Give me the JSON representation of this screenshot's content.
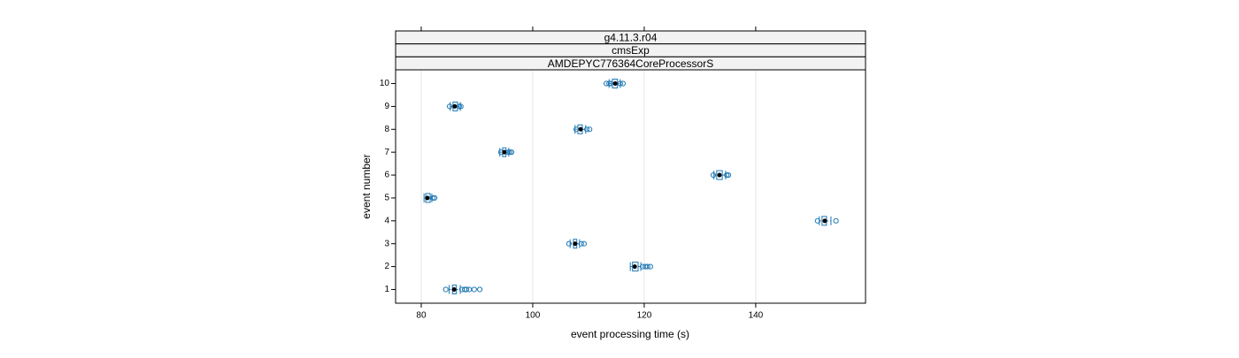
{
  "chart_data": {
    "type": "boxplot",
    "strips": [
      "g4.11.3.r04",
      "cmsExp",
      "AMDEPYC776364CoreProcessorS"
    ],
    "xlabel": "event processing time (s)",
    "ylabel": "event number",
    "xlim": [
      75.4,
      159.7
    ],
    "xticks": [
      80,
      100,
      120,
      140
    ],
    "ylim": [
      0.4,
      10.6
    ],
    "yticks": [
      1,
      2,
      3,
      4,
      5,
      6,
      7,
      8,
      9,
      10
    ],
    "color": "#1f78b4",
    "median_color": "#000000",
    "grid": true,
    "boxes": [
      {
        "y": 1,
        "min": 85,
        "q1": 85.6,
        "median": 85.9,
        "q3": 86.3,
        "max": 87,
        "outliers": [
          84.4,
          87.3,
          87.8,
          88.1,
          88.6,
          89.5,
          90.5
        ]
      },
      {
        "y": 2,
        "min": 117.5,
        "q1": 117.9,
        "median": 118.3,
        "q3": 118.9,
        "max": 119.4,
        "outliers": [
          119.7,
          120.2,
          120.6,
          121.1
        ]
      },
      {
        "y": 3,
        "min": 106.7,
        "q1": 107.3,
        "median": 107.6,
        "q3": 107.9,
        "max": 108.4,
        "outliers": [
          106.5,
          108.7,
          109.2
        ]
      },
      {
        "y": 4,
        "min": 151.4,
        "q1": 151.9,
        "median": 152.4,
        "q3": 152.7,
        "max": 153.5,
        "outliers": [
          151.1,
          154.4
        ]
      },
      {
        "y": 5,
        "min": 80.5,
        "q1": 80.8,
        "median": 81.1,
        "q3": 81.6,
        "max": 81.9,
        "outliers": [
          82.1,
          82.4
        ]
      },
      {
        "y": 6,
        "min": 132.5,
        "q1": 133,
        "median": 133.5,
        "q3": 134,
        "max": 134.6,
        "outliers": [
          132.4,
          134.8,
          135.1
        ]
      },
      {
        "y": 7,
        "min": 94.1,
        "q1": 94.6,
        "median": 94.9,
        "q3": 95.2,
        "max": 95.7,
        "outliers": [
          94.3,
          95.6,
          95.9,
          96.2
        ]
      },
      {
        "y": 8,
        "min": 107.6,
        "q1": 108.1,
        "median": 108.6,
        "q3": 108.9,
        "max": 109.5,
        "outliers": [
          107.8,
          109.7,
          110.2
        ]
      },
      {
        "y": 9,
        "min": 85.2,
        "q1": 85.7,
        "median": 86,
        "q3": 86.5,
        "max": 87,
        "outliers": [
          85.1,
          86.8,
          87.1
        ]
      },
      {
        "y": 10,
        "min": 113.7,
        "q1": 114.3,
        "median": 114.8,
        "q3": 115.2,
        "max": 115.7,
        "outliers": [
          113.2,
          113.7,
          114,
          115.7,
          116.2
        ]
      }
    ]
  }
}
